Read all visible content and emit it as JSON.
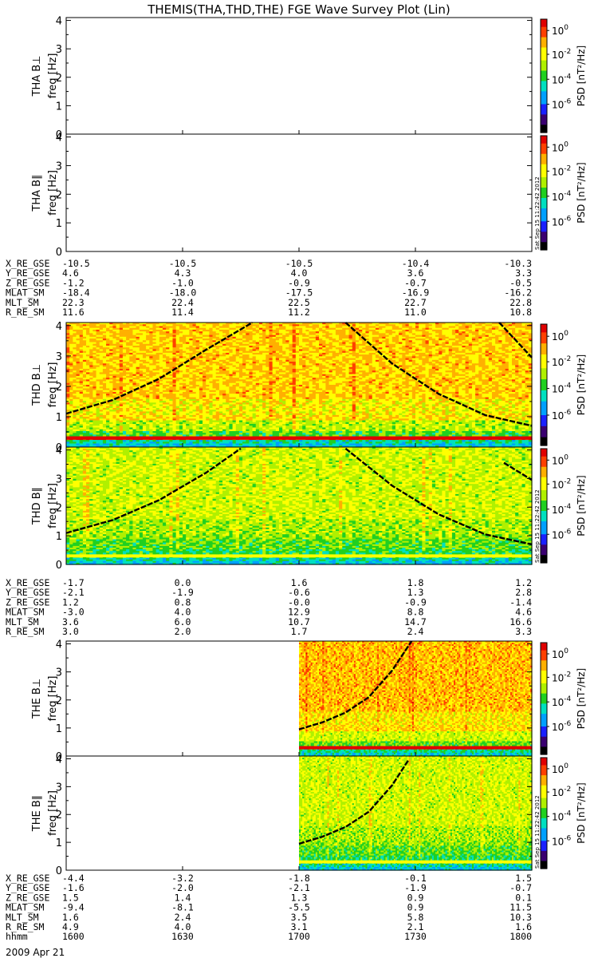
{
  "title": "THEMIS(THA,THD,THE) FGE Wave Survey Plot (Lin)",
  "timestamp_stamp": "Sat Sep 15 11:22:42 2012",
  "footer_date": "2009 Apr 21",
  "colors": {
    "axis": "#000000",
    "curve": "#000000",
    "colorbar": [
      "#000000",
      "#3a0070",
      "#1a20ff",
      "#00a0ff",
      "#00e0c0",
      "#20d020",
      "#b0f000",
      "#ffff00",
      "#ffb000",
      "#ff4000",
      "#e00000"
    ]
  },
  "colorbar": {
    "label": "PSD [nT²/Hz]",
    "ticks": [
      {
        "base": "10",
        "exp": "0"
      },
      {
        "base": "10",
        "exp": "-2"
      },
      {
        "base": "10",
        "exp": "-4"
      },
      {
        "base": "10",
        "exp": "-6"
      }
    ]
  },
  "axis_ticks_y": [
    "0",
    "1",
    "2",
    "3",
    "4"
  ],
  "freq_label": "freq [Hz]",
  "chart_data": {
    "type": "heatmap",
    "x_unit": "hhmm",
    "x_ticks": [
      "1600",
      "1630",
      "1700",
      "1730",
      "1800"
    ],
    "ylim": [
      0,
      4.1
    ],
    "ylabel": "freq [Hz]",
    "zlabel": "PSD [nT²/Hz]",
    "zscale": "log",
    "zrange": [
      1e-07,
      10
    ],
    "panels": [
      {
        "probe": "THA",
        "label": "THA B⊥",
        "data_present": false,
        "data_start_frac": 1.0,
        "dc_line_hz": 0.3,
        "curves": []
      },
      {
        "probe": "THA",
        "label": "THA B∥",
        "data_present": false,
        "data_start_frac": 1.0,
        "dc_line_hz": 0.3,
        "curves": []
      },
      {
        "probe": "THD",
        "label": "THD B⊥",
        "data_present": true,
        "data_start_frac": 0.0,
        "dc_line_hz": 0.3,
        "curves": [
          {
            "x": [
              0.0,
              0.1,
              0.2,
              0.3,
              0.4
            ],
            "y": [
              1.1,
              1.55,
              2.25,
              3.2,
              4.1
            ]
          },
          {
            "x": [
              0.6,
              0.7,
              0.8,
              0.9,
              1.0
            ],
            "y": [
              4.1,
              2.75,
              1.75,
              1.05,
              0.7
            ]
          },
          {
            "x": [
              0.93,
              1.0
            ],
            "y": [
              4.1,
              2.95
            ]
          }
        ]
      },
      {
        "probe": "THD",
        "label": "THD B∥",
        "data_present": true,
        "data_start_frac": 0.0,
        "dc_line_hz": 0.3,
        "curves": [
          {
            "x": [
              0.0,
              0.1,
              0.2,
              0.3,
              0.375
            ],
            "y": [
              1.1,
              1.55,
              2.25,
              3.2,
              4.05
            ]
          },
          {
            "x": [
              0.6,
              0.7,
              0.8,
              0.9,
              1.0
            ],
            "y": [
              4.05,
              2.75,
              1.75,
              1.05,
              0.7
            ]
          },
          {
            "x": [
              0.94,
              1.0
            ],
            "y": [
              3.55,
              2.95
            ]
          }
        ]
      },
      {
        "probe": "THE",
        "label": "THE B⊥",
        "data_present": true,
        "data_start_frac": 0.5,
        "dc_line_hz": 0.3,
        "curves": [
          {
            "x": [
              0.5,
              0.55,
              0.6,
              0.65,
              0.7,
              0.742
            ],
            "y": [
              0.95,
              1.2,
              1.55,
              2.1,
              3.05,
              4.1
            ]
          }
        ]
      },
      {
        "probe": "THE",
        "label": "THE B∥",
        "data_present": true,
        "data_start_frac": 0.5,
        "dc_line_hz": 0.3,
        "curves": [
          {
            "x": [
              0.5,
              0.55,
              0.6,
              0.65,
              0.7,
              0.735
            ],
            "y": [
              0.95,
              1.2,
              1.55,
              2.1,
              3.05,
              3.95
            ]
          }
        ]
      }
    ]
  },
  "ephemeris_blocks": [
    {
      "rows": [
        {
          "label": "X_RE_GSE",
          "values": [
            "-10.5",
            "-10.5",
            "-10.5",
            "-10.4",
            "-10.3"
          ]
        },
        {
          "label": "Y_RE_GSE",
          "values": [
            "4.6",
            "4.3",
            "4.0",
            "3.6",
            "3.3"
          ]
        },
        {
          "label": "Z_RE_GSE",
          "values": [
            "-1.2",
            "-1.0",
            "-0.9",
            "-0.7",
            "-0.5"
          ]
        },
        {
          "label": "MLAT_SM",
          "values": [
            "-18.4",
            "-18.0",
            "-17.5",
            "-16.9",
            "-16.2"
          ]
        },
        {
          "label": "MLT_SM",
          "values": [
            "22.3",
            "22.4",
            "22.5",
            "22.7",
            "22.8"
          ]
        },
        {
          "label": "R_RE_SM",
          "values": [
            "11.6",
            "11.4",
            "11.2",
            "11.0",
            "10.8"
          ]
        }
      ]
    },
    {
      "rows": [
        {
          "label": "X_RE_GSE",
          "values": [
            "-1.7",
            "0.0",
            "1.6",
            "1.8",
            "1.2"
          ]
        },
        {
          "label": "Y_RE_GSE",
          "values": [
            "-2.1",
            "-1.9",
            "-0.6",
            "1.3",
            "2.8"
          ]
        },
        {
          "label": "Z_RE_GSE",
          "values": [
            "1.2",
            "0.8",
            "-0.0",
            "-0.9",
            "-1.4"
          ]
        },
        {
          "label": "MLAT_SM",
          "values": [
            "-3.0",
            "4.0",
            "12.9",
            "8.8",
            "4.6"
          ]
        },
        {
          "label": "MLT_SM",
          "values": [
            "3.6",
            "6.0",
            "10.7",
            "14.7",
            "16.6"
          ]
        },
        {
          "label": "R_RE_SM",
          "values": [
            "3.0",
            "2.0",
            "1.7",
            "2.4",
            "3.3"
          ]
        }
      ]
    },
    {
      "rows": [
        {
          "label": "X_RE_GSE",
          "values": [
            "-4.4",
            "-3.2",
            "-1.8",
            "-0.1",
            "1.5"
          ]
        },
        {
          "label": "Y_RE_GSE",
          "values": [
            "-1.6",
            "-2.0",
            "-2.1",
            "-1.9",
            "-0.7"
          ]
        },
        {
          "label": "Z_RE_GSE",
          "values": [
            "1.5",
            "1.4",
            "1.3",
            "0.9",
            "0.1"
          ]
        },
        {
          "label": "MLAT_SM",
          "values": [
            "-9.4",
            "-8.1",
            "-5.5",
            "0.9",
            "11.5"
          ]
        },
        {
          "label": "MLT_SM",
          "values": [
            "1.6",
            "2.4",
            "3.5",
            "5.8",
            "10.3"
          ]
        },
        {
          "label": "R_RE_SM",
          "values": [
            "4.9",
            "4.0",
            "3.1",
            "2.1",
            "1.6"
          ]
        },
        {
          "label": "hhmm",
          "values": [
            "1600",
            "1630",
            "1700",
            "1730",
            "1800"
          ]
        }
      ]
    }
  ]
}
